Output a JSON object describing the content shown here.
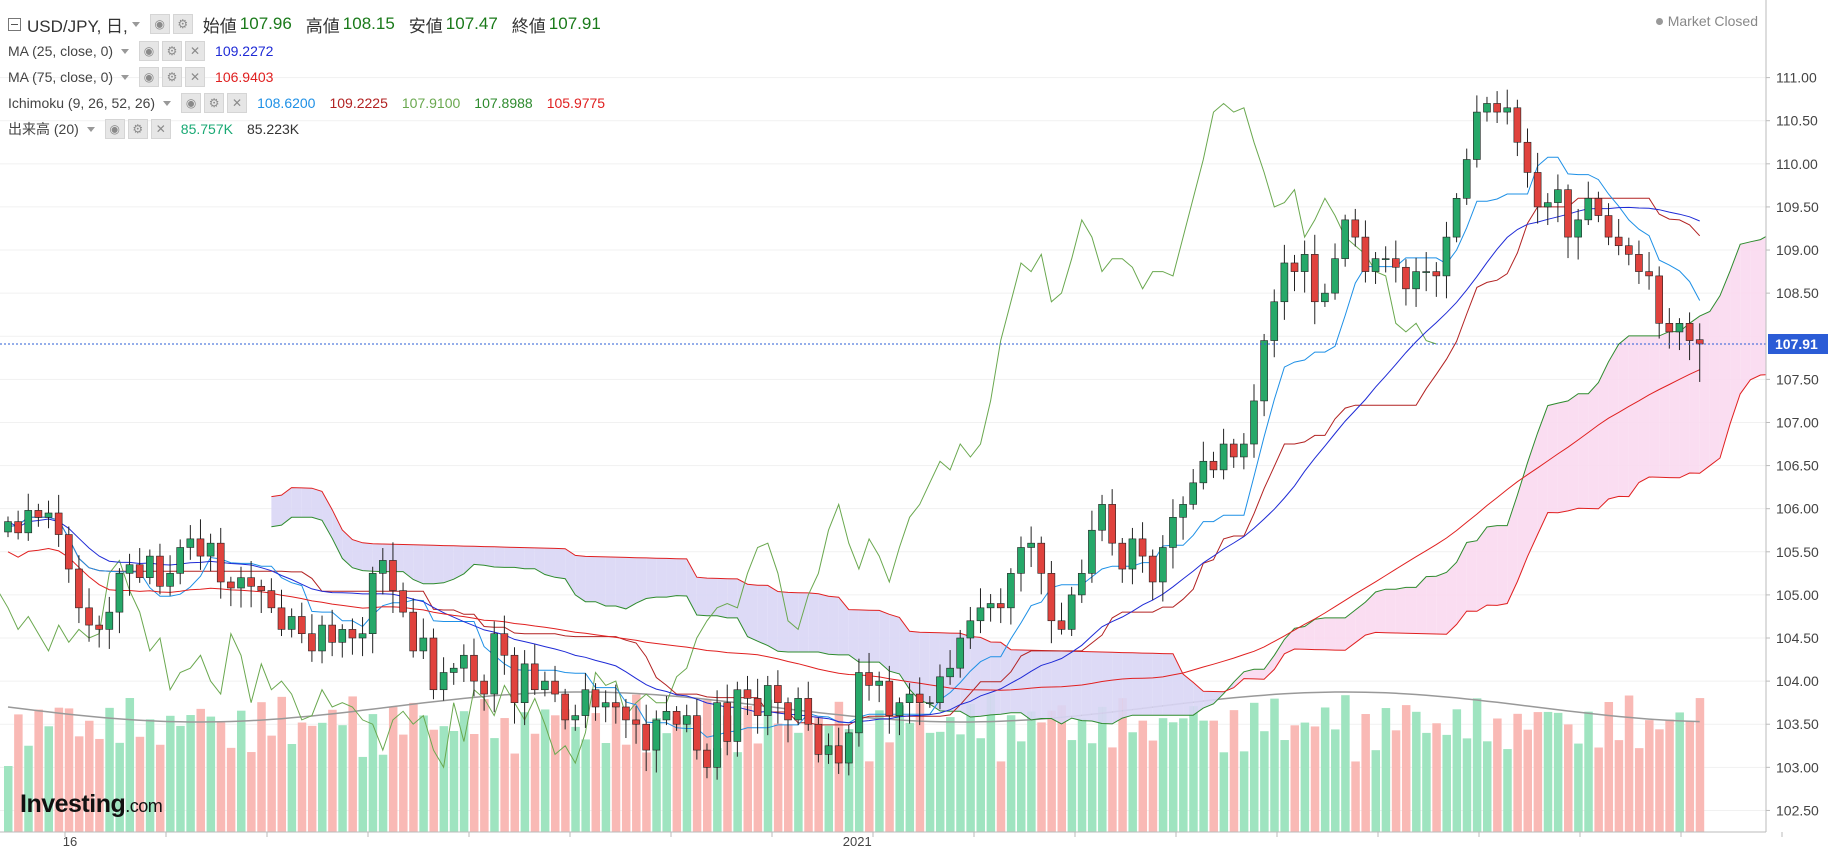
{
  "header": {
    "symbol": "USD/JPY, 日,",
    "ohlc": [
      {
        "label": "始値",
        "value": "107.96"
      },
      {
        "label": "高値",
        "value": "108.15"
      },
      {
        "label": "安値",
        "value": "107.47"
      },
      {
        "label": "終値",
        "value": "107.91"
      }
    ]
  },
  "indicators": {
    "ma25": {
      "label": "MA (25, close, 0)",
      "value": "109.2272",
      "color": "#1f2bd6"
    },
    "ma75": {
      "label": "MA (75, close, 0)",
      "value": "106.9403",
      "color": "#e02020"
    },
    "ichimoku": {
      "label": "Ichimoku (9, 26, 52, 26)",
      "values": [
        "108.6200",
        "109.2225",
        "107.9100",
        "107.8988",
        "105.9775"
      ],
      "colors": [
        "#1e90e6",
        "#b22222",
        "#6aa84f",
        "#2e8b2e",
        "#e02020"
      ]
    },
    "volume": {
      "label": "出来高 (20)",
      "values": [
        "85.757K",
        "85.223K"
      ],
      "colors": [
        "#19a974",
        "#333333"
      ]
    }
  },
  "status": {
    "text": "Market Closed"
  },
  "logo": {
    "main": "Investing",
    "suffix": ".com"
  },
  "colors": {
    "up": "#26a869",
    "down": "#e0423d",
    "kumo_bull": "#f9d9ef",
    "kumo_bear": "#d9d6f5",
    "last_price_bg": "#2b5cd6",
    "volume_up": "#9fe4c0",
    "volume_down": "#f9b9b5"
  },
  "chart_data": {
    "type": "candlestick",
    "symbol": "USD/JPY",
    "timeframe": "日",
    "y_axis_ticks": [
      111.0,
      110.5,
      110.0,
      109.5,
      109.0,
      108.5,
      108.0,
      107.5,
      107.0,
      106.5,
      106.0,
      105.5,
      105.0,
      104.5,
      104.0,
      103.5,
      103.0,
      102.5
    ],
    "y_axis_labels": [
      "111.00",
      "110.50",
      "110.00",
      "109.50",
      "109.00",
      "108.50",
      "107.50",
      "107.00",
      "106.50",
      "106.00",
      "105.50",
      "105.00",
      "104.50",
      "104.00",
      "103.50",
      "103.00",
      "102.50"
    ],
    "ylim": [
      102.25,
      111.9
    ],
    "x_labels": [
      {
        "index": 6,
        "text": "16"
      },
      {
        "index": 83,
        "text": "2021"
      }
    ],
    "last_price": {
      "value": 107.91,
      "label": "107.91"
    },
    "closes": [
      105.85,
      105.72,
      105.98,
      105.9,
      105.95,
      105.7,
      105.3,
      104.85,
      104.65,
      104.6,
      104.8,
      105.25,
      105.35,
      105.2,
      105.45,
      105.1,
      105.25,
      105.55,
      105.65,
      105.45,
      105.6,
      105.15,
      105.08,
      105.2,
      105.1,
      105.05,
      104.85,
      104.6,
      104.75,
      104.55,
      104.35,
      104.65,
      104.45,
      104.6,
      104.5,
      104.55,
      105.25,
      105.4,
      105.05,
      104.8,
      104.35,
      104.5,
      103.9,
      104.1,
      104.15,
      104.3,
      104.0,
      103.85,
      104.55,
      104.3,
      103.75,
      104.2,
      103.9,
      104.0,
      103.85,
      103.55,
      103.6,
      103.9,
      103.7,
      103.75,
      103.7,
      103.55,
      103.5,
      103.2,
      103.55,
      103.65,
      103.5,
      103.6,
      103.2,
      103.0,
      103.75,
      103.3,
      103.9,
      103.8,
      103.6,
      103.95,
      103.75,
      103.55,
      103.8,
      103.5,
      103.15,
      103.25,
      103.05,
      103.4,
      104.1,
      103.95,
      104.0,
      103.6,
      103.75,
      103.85,
      103.75,
      103.75,
      104.05,
      104.15,
      104.5,
      104.7,
      104.85,
      104.9,
      104.85,
      105.25,
      105.55,
      105.6,
      105.25,
      104.7,
      104.6,
      105.0,
      105.25,
      105.75,
      106.05,
      105.6,
      105.3,
      105.65,
      105.45,
      105.15,
      105.55,
      105.9,
      106.05,
      106.3,
      106.55,
      106.45,
      106.75,
      106.6,
      106.75,
      107.25,
      107.95,
      108.4,
      108.85,
      108.75,
      108.95,
      108.4,
      108.5,
      108.9,
      109.35,
      109.15,
      108.75,
      108.9,
      108.9,
      108.8,
      108.55,
      108.75,
      108.75,
      108.7,
      109.15,
      109.6,
      110.05,
      110.6,
      110.7,
      110.6,
      110.65,
      110.25,
      109.9,
      109.5,
      109.55,
      109.7,
      109.15,
      109.35,
      109.6,
      109.4,
      109.15,
      109.05,
      108.95,
      108.75,
      108.7,
      108.15,
      108.05,
      108.15,
      107.95,
      107.91
    ],
    "volume_avg_line": [
      85.76,
      85.22
    ],
    "series": [
      {
        "name": "MA (25, close, 0)",
        "last": 109.2272
      },
      {
        "name": "MA (75, close, 0)",
        "last": 106.9403
      },
      {
        "name": "Ichimoku (9, 26, 52, 26)",
        "last": [
          108.62,
          109.2225,
          107.91,
          107.8988,
          105.9775
        ]
      },
      {
        "name": "出来高 (20)",
        "last": [
          85.757,
          85.223
        ],
        "unit": "K"
      }
    ]
  }
}
